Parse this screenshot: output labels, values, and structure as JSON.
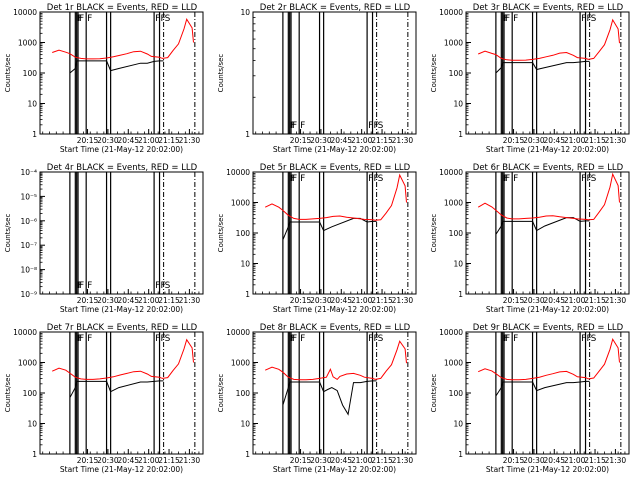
{
  "style": {
    "background": "#ffffff",
    "events_color": "#000000",
    "lld_color": "#ff0000"
  },
  "chart_data": [
    {
      "type": "line",
      "title": "Det 1r BLACK = Events, RED = LLD",
      "xlabel": "Start Time (21-May-12 20:02:00)",
      "ylabel": "Counts/sec",
      "y_scale": "log",
      "ylim": [
        1,
        10000
      ],
      "y_tick_labels": [
        "1",
        "10",
        "100",
        "1000",
        "10000"
      ],
      "x_tick_labels": [
        "20:15",
        "20:30",
        "20:45",
        "21:00",
        "21:15",
        "21:30"
      ],
      "flags": [
        "F",
        "F",
        "F",
        "F",
        "F",
        "F",
        "S"
      ],
      "series": [
        {
          "name": "Events",
          "x": [
            0,
            4,
            5,
            6,
            12,
            27,
            30,
            36,
            52,
            55,
            57,
            62,
            66,
            69
          ],
          "y": [
            100,
            140,
            250,
            250,
            250,
            250,
            120,
            140,
            210,
            210,
            210,
            240,
            250,
            250
          ]
        },
        {
          "name": "LLD",
          "x": [
            -13,
            -8,
            -3,
            0,
            4,
            8,
            12,
            17,
            22,
            27,
            32,
            37,
            42,
            47,
            52,
            57,
            60,
            66,
            68,
            72,
            76,
            80,
            84,
            86,
            90,
            91
          ],
          "y": [
            470,
            560,
            480,
            430,
            330,
            300,
            290,
            290,
            295,
            310,
            340,
            380,
            430,
            500,
            520,
            420,
            350,
            330,
            300,
            320,
            550,
            900,
            2800,
            5800,
            3000,
            1000
          ]
        }
      ]
    },
    {
      "type": "line",
      "title": "Det 2r BLACK = Events, RED = LLD",
      "xlabel": "Start Time (21-May-12 20:02:00)",
      "ylabel": "Counts/sec",
      "y_scale": "log",
      "ylim": [
        1,
        10
      ],
      "y_tick_labels": [
        "1",
        "10"
      ],
      "x_tick_labels": [
        "20:15",
        "20:30",
        "20:45",
        "21:00",
        "21:15",
        "21:30"
      ],
      "flags": [
        "F",
        "F",
        "F",
        "F",
        "F",
        "F",
        "S"
      ],
      "series": []
    },
    {
      "type": "line",
      "title": "Det 3r BLACK = Events, RED = LLD",
      "xlabel": "Start Time (21-May-12 20:02:00)",
      "ylabel": "Counts/sec",
      "y_scale": "log",
      "ylim": [
        1,
        10000
      ],
      "y_tick_labels": [
        "1",
        "10",
        "100",
        "1000",
        "10000"
      ],
      "x_tick_labels": [
        "20:15",
        "20:30",
        "20:45",
        "21:00",
        "21:15",
        "21:30"
      ],
      "flags": [
        "F",
        "F",
        "F",
        "F",
        "F",
        "F",
        "S"
      ],
      "series": [
        {
          "name": "Events",
          "x": [
            0,
            4,
            5,
            6,
            12,
            27,
            30,
            36,
            52,
            55,
            57,
            62,
            66,
            69
          ],
          "y": [
            100,
            150,
            220,
            220,
            220,
            220,
            130,
            150,
            220,
            220,
            220,
            230,
            240,
            240
          ]
        },
        {
          "name": "LLD",
          "x": [
            -13,
            -8,
            -3,
            0,
            4,
            8,
            12,
            17,
            22,
            27,
            32,
            37,
            42,
            47,
            52,
            57,
            60,
            66,
            68,
            72,
            76,
            80,
            84,
            86,
            90,
            91
          ],
          "y": [
            420,
            520,
            440,
            400,
            300,
            270,
            260,
            260,
            265,
            280,
            300,
            340,
            380,
            450,
            470,
            380,
            320,
            300,
            280,
            300,
            500,
            850,
            2600,
            5500,
            2800,
            950
          ]
        }
      ]
    },
    {
      "type": "line",
      "title": "Det 4r BLACK = Events, RED = LLD",
      "xlabel": "Start Time (21-May-12 20:02:00)",
      "ylabel": "Counts/sec",
      "y_scale": "log",
      "ylim": [
        1e-09,
        0.0001
      ],
      "y_tick_labels": [
        "10⁻⁹",
        "10⁻⁸",
        "10⁻⁷",
        "10⁻⁶",
        "10⁻⁵",
        "10⁻⁴"
      ],
      "x_tick_labels": [
        "20:15",
        "20:30",
        "20:45",
        "21:00",
        "21:15",
        "21:30"
      ],
      "flags": [
        "F",
        "F",
        "F",
        "F",
        "F",
        "F",
        "S"
      ],
      "series": []
    },
    {
      "type": "line",
      "title": "Det 5r BLACK = Events, RED = LLD",
      "xlabel": "Start Time (21-May-12 20:02:00)",
      "ylabel": "Counts/sec",
      "y_scale": "log",
      "ylim": [
        1,
        10000
      ],
      "y_tick_labels": [
        "1",
        "10",
        "100",
        "1000",
        "10000"
      ],
      "x_tick_labels": [
        "20:15",
        "20:30",
        "20:45",
        "21:00",
        "21:15",
        "21:30"
      ],
      "flags": [
        "F",
        "F",
        "F",
        "F",
        "F",
        "F",
        "S"
      ],
      "series": [
        {
          "name": "Events",
          "x": [
            0,
            4,
            5,
            6,
            12,
            27,
            30,
            36,
            52,
            55,
            57,
            62,
            66,
            69
          ],
          "y": [
            60,
            160,
            230,
            230,
            230,
            230,
            120,
            160,
            300,
            300,
            300,
            230,
            240,
            240
          ]
        },
        {
          "name": "LLD",
          "x": [
            -13,
            -8,
            -3,
            0,
            4,
            8,
            12,
            17,
            22,
            27,
            32,
            37,
            42,
            47,
            52,
            57,
            60,
            66,
            68,
            72,
            76,
            80,
            84,
            86,
            90,
            91
          ],
          "y": [
            700,
            900,
            700,
            550,
            380,
            300,
            280,
            280,
            290,
            300,
            320,
            350,
            360,
            330,
            310,
            290,
            280,
            270,
            260,
            270,
            450,
            800,
            3000,
            8000,
            3500,
            1000
          ]
        }
      ]
    },
    {
      "type": "line",
      "title": "Det 6r BLACK = Events, RED = LLD",
      "xlabel": "Start Time (21-May-12 20:02:00)",
      "ylabel": "Counts/sec",
      "y_scale": "log",
      "ylim": [
        1,
        10000
      ],
      "y_tick_labels": [
        "1",
        "10",
        "100",
        "1000",
        "10000"
      ],
      "x_tick_labels": [
        "20:15",
        "20:30",
        "20:45",
        "21:00",
        "21:15",
        "21:30"
      ],
      "flags": [
        "F",
        "F",
        "F",
        "F",
        "F",
        "F",
        "S"
      ],
      "series": [
        {
          "name": "Events",
          "x": [
            0,
            4,
            5,
            6,
            12,
            27,
            30,
            36,
            52,
            55,
            57,
            62,
            66,
            69
          ],
          "y": [
            90,
            170,
            240,
            240,
            240,
            240,
            120,
            170,
            320,
            320,
            320,
            240,
            250,
            250
          ]
        },
        {
          "name": "LLD",
          "x": [
            -13,
            -8,
            -3,
            0,
            4,
            8,
            12,
            17,
            22,
            27,
            32,
            37,
            42,
            47,
            52,
            57,
            60,
            66,
            68,
            72,
            76,
            80,
            84,
            86,
            90,
            91
          ],
          "y": [
            700,
            950,
            720,
            560,
            390,
            310,
            290,
            290,
            300,
            310,
            330,
            360,
            370,
            340,
            320,
            300,
            290,
            280,
            270,
            280,
            480,
            850,
            3200,
            8500,
            3600,
            1000
          ]
        }
      ]
    },
    {
      "type": "line",
      "title": "Det 7r BLACK = Events, RED = LLD",
      "xlabel": "Start Time (21-May-12 20:02:00)",
      "ylabel": "Counts/sec",
      "y_scale": "log",
      "ylim": [
        1,
        10000
      ],
      "y_tick_labels": [
        "1",
        "10",
        "100",
        "1000",
        "10000"
      ],
      "x_tick_labels": [
        "20:15",
        "20:30",
        "20:45",
        "21:00",
        "21:15",
        "21:30"
      ],
      "flags": [
        "F",
        "F",
        "F",
        "F",
        "F",
        "F",
        "S"
      ],
      "series": [
        {
          "name": "Events",
          "x": [
            0,
            4,
            5,
            6,
            12,
            27,
            30,
            36,
            52,
            55,
            57,
            62,
            66,
            69
          ],
          "y": [
            70,
            150,
            240,
            240,
            240,
            240,
            110,
            150,
            230,
            230,
            230,
            240,
            250,
            250
          ]
        },
        {
          "name": "LLD",
          "x": [
            -13,
            -8,
            -3,
            0,
            4,
            8,
            12,
            17,
            22,
            27,
            32,
            37,
            42,
            47,
            52,
            57,
            60,
            66,
            68,
            72,
            76,
            80,
            84,
            86,
            90,
            91
          ],
          "y": [
            520,
            650,
            560,
            450,
            330,
            290,
            280,
            280,
            290,
            310,
            340,
            390,
            440,
            500,
            520,
            420,
            350,
            330,
            300,
            320,
            550,
            900,
            2800,
            5600,
            3000,
            1000
          ]
        }
      ]
    },
    {
      "type": "line",
      "title": "Det 8r BLACK = Events, RED = LLD",
      "xlabel": "Start Time (21-May-12 20:02:00)",
      "ylabel": "Counts/sec",
      "y_scale": "log",
      "ylim": [
        1,
        10000
      ],
      "y_tick_labels": [
        "1",
        "10",
        "100",
        "1000",
        "10000"
      ],
      "x_tick_labels": [
        "20:15",
        "20:30",
        "20:45",
        "21:00",
        "21:15",
        "21:30"
      ],
      "flags": [
        "F",
        "F",
        "F",
        "F",
        "F",
        "F",
        "S"
      ],
      "series": [
        {
          "name": "Events",
          "x": [
            0,
            4,
            5,
            6,
            12,
            27,
            30,
            33,
            36,
            40,
            44,
            48,
            52,
            55,
            57,
            62,
            66,
            69
          ],
          "y": [
            40,
            150,
            230,
            230,
            230,
            230,
            110,
            130,
            150,
            120,
            40,
            20,
            220,
            220,
            220,
            240,
            250,
            250
          ]
        },
        {
          "name": "LLD",
          "x": [
            -13,
            -8,
            -3,
            0,
            4,
            8,
            12,
            17,
            22,
            27,
            32,
            35,
            37,
            40,
            42,
            47,
            52,
            57,
            60,
            66,
            68,
            72,
            76,
            80,
            84,
            86,
            90,
            91
          ],
          "y": [
            560,
            700,
            600,
            480,
            330,
            280,
            270,
            270,
            280,
            300,
            330,
            600,
            340,
            280,
            350,
            420,
            440,
            380,
            330,
            300,
            280,
            300,
            520,
            850,
            2600,
            5000,
            2800,
            950
          ]
        }
      ]
    },
    {
      "type": "line",
      "title": "Det 9r BLACK = Events, RED = LLD",
      "xlabel": "Start Time (21-May-12 20:02:00)",
      "ylabel": "Counts/sec",
      "y_scale": "log",
      "ylim": [
        1,
        10000
      ],
      "y_tick_labels": [
        "1",
        "10",
        "100",
        "1000",
        "10000"
      ],
      "x_tick_labels": [
        "20:15",
        "20:30",
        "20:45",
        "21:00",
        "21:15",
        "21:30"
      ],
      "flags": [
        "F",
        "F",
        "F",
        "F",
        "F",
        "F",
        "S"
      ],
      "series": [
        {
          "name": "Events",
          "x": [
            0,
            4,
            5,
            6,
            12,
            27,
            30,
            36,
            52,
            55,
            57,
            62,
            66,
            69
          ],
          "y": [
            80,
            150,
            230,
            230,
            230,
            230,
            120,
            150,
            220,
            220,
            220,
            230,
            240,
            240
          ]
        },
        {
          "name": "LLD",
          "x": [
            -13,
            -8,
            -3,
            0,
            4,
            8,
            12,
            17,
            22,
            27,
            32,
            37,
            42,
            47,
            52,
            57,
            60,
            66,
            68,
            72,
            76,
            80,
            84,
            86,
            90,
            91
          ],
          "y": [
            500,
            620,
            530,
            430,
            320,
            280,
            270,
            270,
            280,
            300,
            330,
            380,
            430,
            490,
            510,
            410,
            340,
            320,
            290,
            310,
            520,
            880,
            2700,
            5800,
            3000,
            1000
          ]
        }
      ]
    }
  ]
}
